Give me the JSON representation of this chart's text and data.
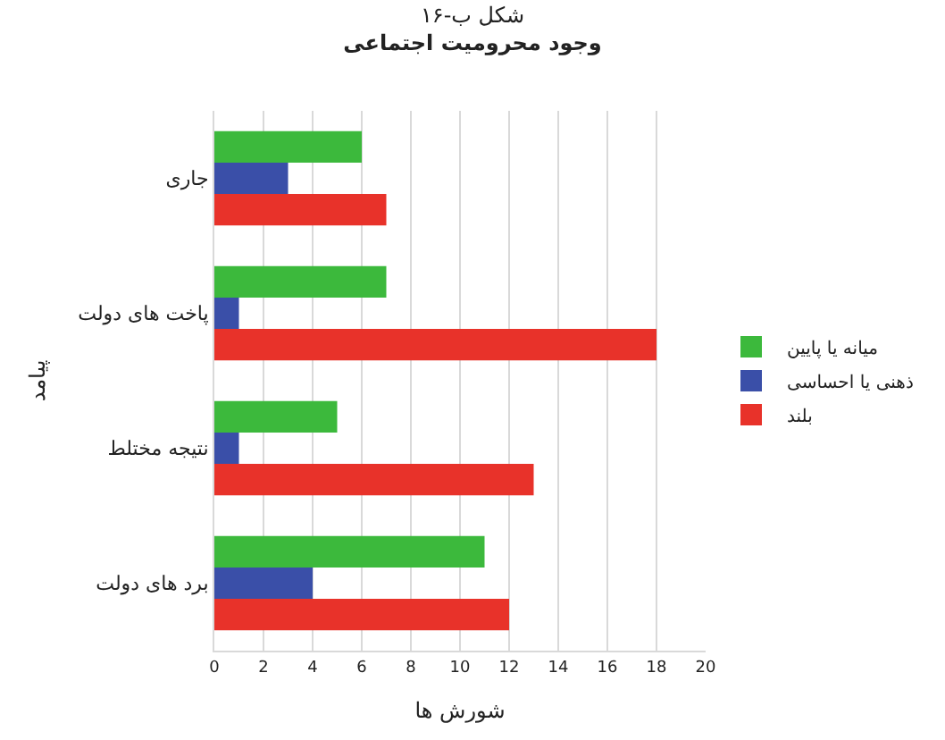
{
  "chart_data": {
    "type": "bar",
    "orientation": "horizontal",
    "title": "شکل ب-۱۶",
    "subtitle": "وجود محرومیت اجتماعی",
    "xlabel": "شورش ها",
    "ylabel": "پیامد",
    "categories": [
      "جاری",
      "پاخت های دولت",
      "نتیجه مختلط",
      "برد های دولت"
    ],
    "series": [
      {
        "name": "میانه یا پایین",
        "color": "#3cb93c",
        "values": [
          6,
          7,
          5,
          11
        ]
      },
      {
        "name": "ذهنی یا احساسی",
        "color": "#3a4fa8",
        "values": [
          3,
          1,
          1,
          4
        ]
      },
      {
        "name": "بلند",
        "color": "#e8322a",
        "values": [
          7,
          18,
          13,
          12
        ]
      }
    ],
    "xlim": [
      0,
      20
    ],
    "xticks": [
      0,
      2,
      4,
      6,
      8,
      10,
      12,
      14,
      16,
      18,
      20
    ],
    "grid": "x",
    "legend": "right"
  }
}
